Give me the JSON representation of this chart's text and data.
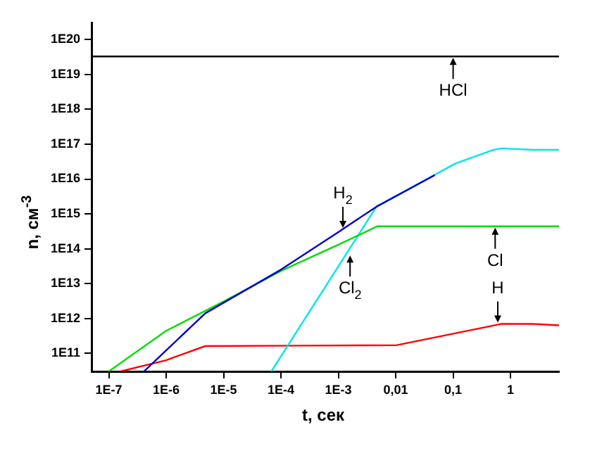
{
  "chart_data": {
    "type": "line",
    "xlabel": "t, сек",
    "ylabel": "n, см$^{-3}$",
    "log": "xy",
    "xlim": [
      5e-08,
      7
    ],
    "ylim": [
      30000000000.0,
      3e+20
    ],
    "xticks": [
      {
        "value": 1e-07,
        "label": "1E-7"
      },
      {
        "value": 1e-06,
        "label": "1E-6"
      },
      {
        "value": 1e-05,
        "label": "1E-5"
      },
      {
        "value": 0.0001,
        "label": "1E-4"
      },
      {
        "value": 0.001,
        "label": "1E-3"
      },
      {
        "value": 0.01,
        "label": "0,01"
      },
      {
        "value": 0.1,
        "label": "0,1"
      },
      {
        "value": 1,
        "label": "1"
      }
    ],
    "yticks": [
      {
        "value": 100000000000.0,
        "label": "1E11"
      },
      {
        "value": 1000000000000.0,
        "label": "1E12"
      },
      {
        "value": 10000000000000.0,
        "label": "1E13"
      },
      {
        "value": 100000000000000.0,
        "label": "1E14"
      },
      {
        "value": 1000000000000000.0,
        "label": "1E15"
      },
      {
        "value": 1e+16,
        "label": "1E16"
      },
      {
        "value": 1e+17,
        "label": "1E17"
      },
      {
        "value": 1e+18,
        "label": "1E18"
      },
      {
        "value": 1e+19,
        "label": "1E19"
      },
      {
        "value": 1e+20,
        "label": "1E20"
      }
    ],
    "marker": "none",
    "line_style": "solid",
    "series": [
      {
        "color": "#000000",
        "x": [
          5e-08,
          7
        ],
        "values": [
          3.3e+19,
          3.3e+19
        ]
      },
      {
        "color": "#0000cc",
        "x": [
          4.1e-07,
          4.8e-06,
          0.0001,
          0.001,
          0.0046,
          0.048
        ],
        "values": [
          30000000000.0,
          1400000000000.0,
          25000000000000.0,
          300000000000000.0,
          1600000000000000.0,
          1.3e+16
        ]
      },
      {
        "color": "#00dd00",
        "x": [
          1e-07,
          1e-06,
          1.1e-05,
          0.0001,
          0.001,
          0.0048,
          7
        ],
        "values": [
          30000000000.0,
          440000000000.0,
          3300000000000.0,
          23000000000000.0,
          130000000000000.0,
          440000000000000.0,
          440000000000000.0
        ]
      },
      {
        "color": "#00e5ee",
        "x": [
          6.8e-05,
          0.0046,
          0.11,
          0.51,
          0.71,
          2.5,
          7
        ],
        "values": [
          30000000000.0,
          1600000000000000.0,
          2.8e+16,
          6.9e+16,
          7.6e+16,
          6.9e+16,
          6.9e+16
        ]
      },
      {
        "color": "#ff0000",
        "x": [
          1.6e-07,
          1e-06,
          4.8e-06,
          0.00021,
          0.0105,
          0.68,
          2.5,
          7
        ],
        "values": [
          30000000000.0,
          63000000000.0,
          160000000000.0,
          165000000000.0,
          170000000000.0,
          690000000000.0,
          690000000000.0,
          630000000000.0
        ]
      }
    ],
    "annotations": [
      {
        "text": "HCl",
        "x": 0.1,
        "y": 3.3e+19
      },
      {
        "text": "H$_{2}$",
        "x": 0.0012,
        "y": 360000000000000.0
      },
      {
        "text": "Cl",
        "x": 0.54,
        "y": 440000000000000.0
      },
      {
        "text": "Cl$_{2}$",
        "x": 0.0016,
        "y": 70000000000000.0
      },
      {
        "text": "H",
        "x": 0.6,
        "y": 690000000000.0
      }
    ]
  }
}
